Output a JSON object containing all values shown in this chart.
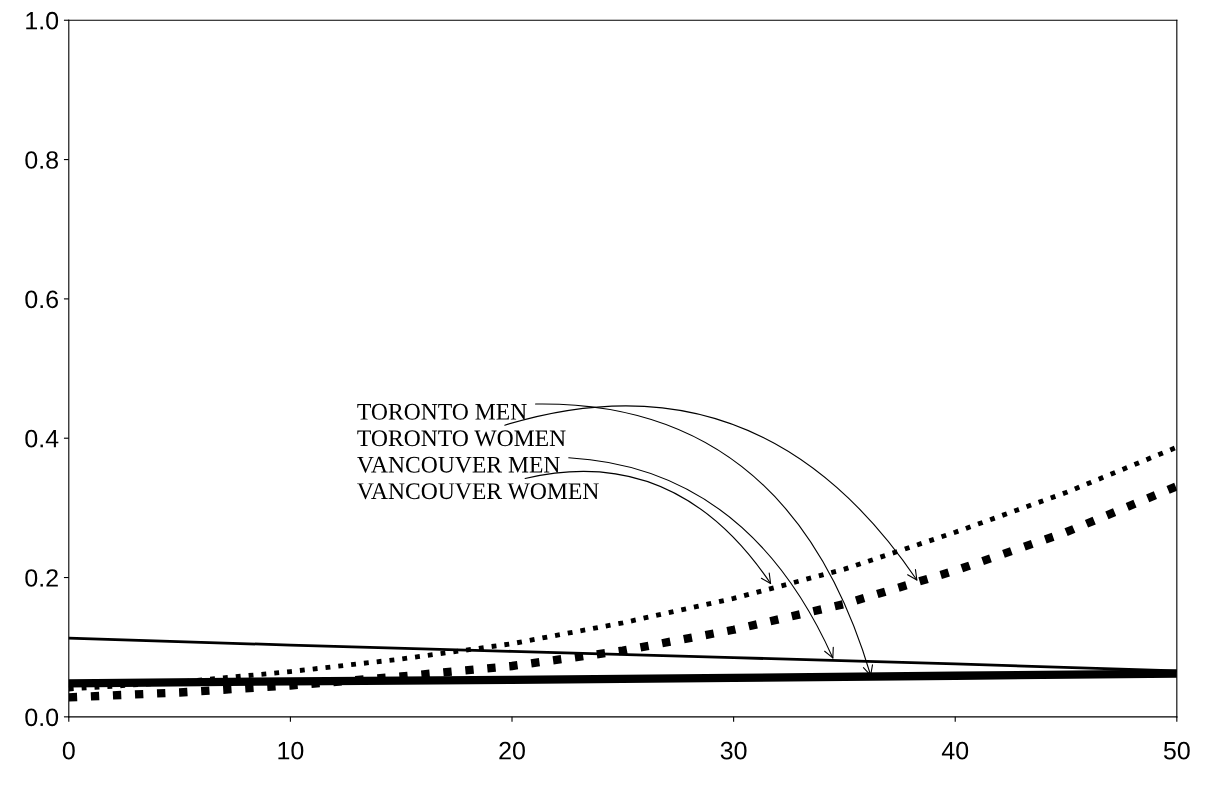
{
  "chart_data": {
    "type": "line",
    "xlim": [
      0,
      50
    ],
    "ylim": [
      0,
      1.0
    ],
    "xticks": [
      0,
      10,
      20,
      30,
      40,
      50
    ],
    "yticks": [
      {
        "value": 0,
        "label": "0.0"
      },
      0.2,
      0.4,
      0.6,
      0.8,
      {
        "value": 1.0,
        "label": "1.0"
      }
    ],
    "grid": false,
    "legend": false,
    "marker": "none",
    "series": [
      {
        "color": "#000000",
        "line_style": "solid",
        "x": [
          0,
          10,
          20,
          30,
          40,
          50
        ],
        "values": [
          0.048,
          0.051,
          0.053,
          0.056,
          0.059,
          0.062
        ]
      },
      {
        "color": "#000000",
        "line_style": "dotted",
        "x": [
          0,
          5,
          10,
          15,
          20,
          25,
          30,
          35,
          40,
          45,
          50
        ],
        "values": [
          0.028,
          0.035,
          0.045,
          0.058,
          0.073,
          0.095,
          0.125,
          0.162,
          0.21,
          0.265,
          0.331
        ]
      },
      {
        "color": "#000000",
        "line_style": "solid",
        "x": [
          0,
          10,
          20,
          30,
          40,
          50
        ],
        "values": [
          0.113,
          0.103,
          0.094,
          0.085,
          0.076,
          0.066
        ]
      },
      {
        "color": "#000000",
        "line_style": "dotted",
        "x": [
          0,
          5,
          10,
          15,
          20,
          25,
          30,
          35,
          40,
          45,
          50
        ],
        "values": [
          0.04,
          0.05,
          0.065,
          0.083,
          0.105,
          0.135,
          0.17,
          0.212,
          0.265,
          0.322,
          0.387
        ]
      }
    ],
    "annotations": [
      {
        "text": "TORONTO MEN",
        "x": 36.2,
        "y": 0.058
      },
      {
        "text": "TORONTO WOMEN",
        "x": 38.3,
        "y": 0.195
      },
      {
        "text": "VANCOUVER MEN",
        "x": 34.5,
        "y": 0.083
      },
      {
        "text": "VANCOUVER WOMEN",
        "x": 31.7,
        "y": 0.19
      }
    ]
  }
}
